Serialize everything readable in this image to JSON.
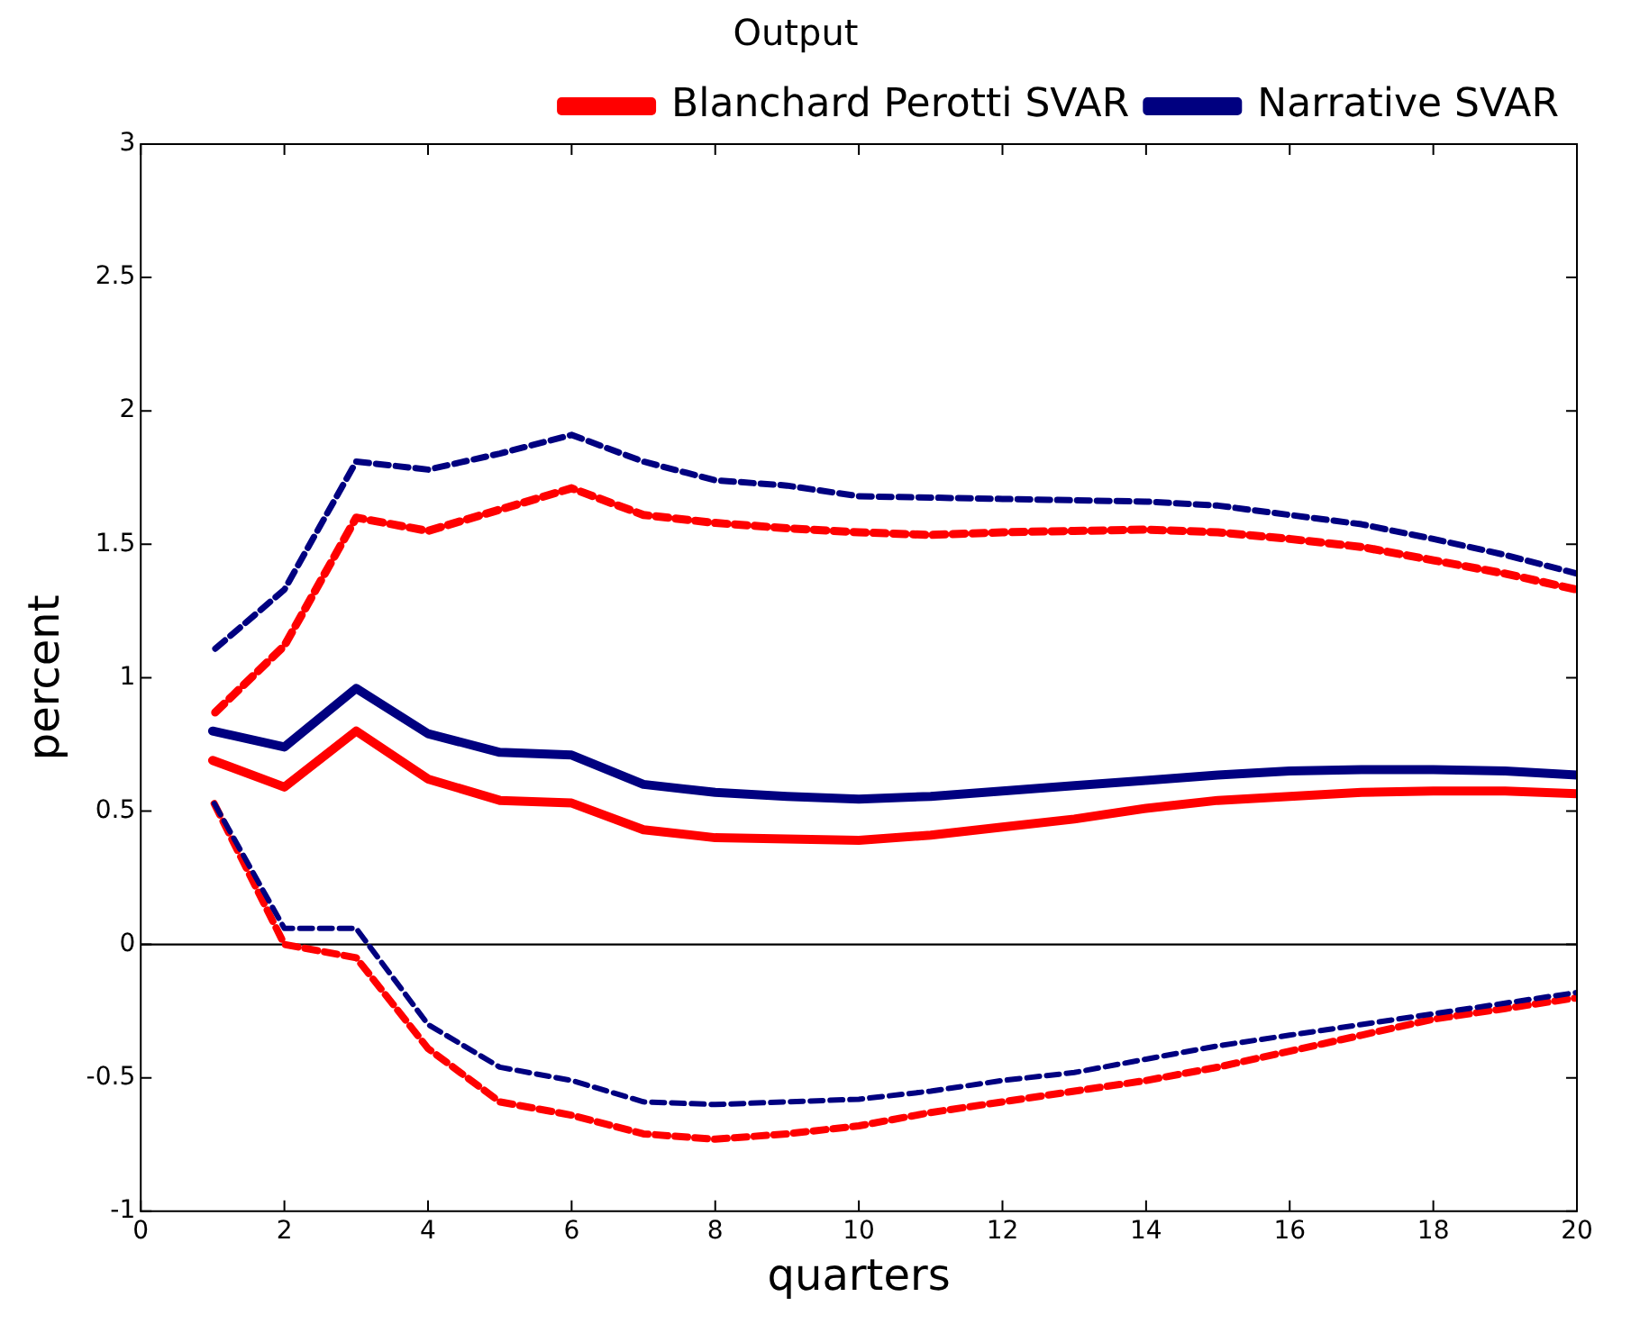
{
  "chart_data": {
    "type": "line",
    "title": "Output",
    "xlabel": "quarters",
    "ylabel": "percent",
    "x": [
      1,
      2,
      3,
      4,
      5,
      6,
      7,
      8,
      9,
      10,
      11,
      12,
      13,
      14,
      15,
      16,
      17,
      18,
      19,
      20
    ],
    "xlim": [
      0,
      20
    ],
    "xticks": [
      0,
      2,
      4,
      6,
      8,
      10,
      12,
      14,
      16,
      18,
      20
    ],
    "ylim": [
      -1,
      3
    ],
    "yticks": [
      -1,
      -0.5,
      0,
      0.5,
      1,
      1.5,
      2,
      2.5,
      3
    ],
    "grid": false,
    "legend": "top right",
    "marker": "none",
    "ref_lines": [
      {
        "axis": "y",
        "value": 0,
        "color": "#000000"
      }
    ],
    "series": [
      {
        "name": "Blanchard Perotti SVAR",
        "color": "#ff0000",
        "line_style": "solid",
        "values": [
          0.69,
          0.59,
          0.8,
          0.62,
          0.54,
          0.53,
          0.43,
          0.4,
          0.395,
          0.39,
          0.41,
          0.44,
          0.47,
          0.51,
          0.54,
          0.555,
          0.57,
          0.575,
          0.575,
          0.565
        ]
      },
      {
        "name": "Narrative SVAR",
        "color": "#000080",
        "line_style": "solid",
        "values": [
          0.8,
          0.74,
          0.96,
          0.79,
          0.72,
          0.71,
          0.6,
          0.57,
          0.555,
          0.545,
          0.555,
          0.575,
          0.595,
          0.615,
          0.635,
          0.65,
          0.655,
          0.655,
          0.65,
          0.635
        ]
      },
      {
        "color": "#ff0000",
        "line_style": "dashed",
        "values": [
          0.86,
          1.12,
          1.6,
          1.55,
          1.63,
          1.71,
          1.61,
          1.58,
          1.56,
          1.545,
          1.535,
          1.545,
          1.55,
          1.555,
          1.545,
          1.52,
          1.49,
          1.44,
          1.39,
          1.33
        ]
      },
      {
        "color": "#ff0000",
        "line_style": "dashed",
        "values": [
          0.54,
          0.0,
          -0.05,
          -0.39,
          -0.59,
          -0.64,
          -0.71,
          -0.73,
          -0.71,
          -0.68,
          -0.63,
          -0.59,
          -0.55,
          -0.51,
          -0.46,
          -0.4,
          -0.34,
          -0.28,
          -0.24,
          -0.2
        ]
      },
      {
        "color": "#000080",
        "line_style": "dashed",
        "values": [
          1.1,
          1.33,
          1.81,
          1.78,
          1.84,
          1.91,
          1.81,
          1.74,
          1.72,
          1.68,
          1.675,
          1.67,
          1.665,
          1.66,
          1.645,
          1.61,
          1.575,
          1.52,
          1.46,
          1.39
        ]
      },
      {
        "color": "#000080",
        "line_style": "dashed",
        "values": [
          0.54,
          0.06,
          0.06,
          -0.3,
          -0.46,
          -0.51,
          -0.59,
          -0.6,
          -0.59,
          -0.58,
          -0.55,
          -0.51,
          -0.48,
          -0.43,
          -0.38,
          -0.34,
          -0.3,
          -0.26,
          -0.22,
          -0.18
        ]
      }
    ]
  }
}
